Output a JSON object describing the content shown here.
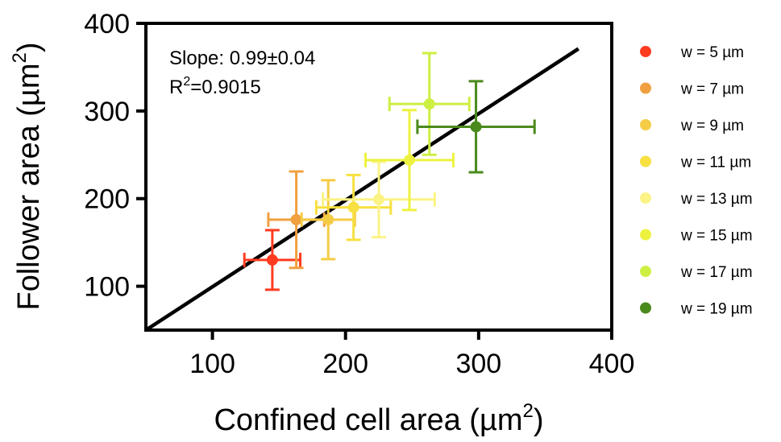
{
  "chart_data": {
    "type": "scatter",
    "xlabel": "Confined cell area (µm",
    "ylabel": "Follower area (µm",
    "label_superscript": "2",
    "label_close": ")",
    "xlim": [
      50,
      400
    ],
    "ylim": [
      50,
      400
    ],
    "x_ticks": [
      "100",
      "200",
      "300",
      "400"
    ],
    "y_ticks": [
      "100",
      "200",
      "300",
      "400"
    ],
    "annotation": {
      "slope": "Slope: 0.99±0.04",
      "r2_prefix": "R",
      "r2_sup": "2",
      "r2_value": "=0.9015"
    },
    "fit_line": {
      "x": [
        50,
        375
      ],
      "y": [
        50,
        371
      ]
    },
    "legend_position": "right",
    "series": [
      {
        "name": "w = 5 µm",
        "color": "#ff3b1f",
        "x": 145,
        "y": 130,
        "xerr": 21,
        "yerr": 34
      },
      {
        "name": "w = 7 µm",
        "color": "#f0a040",
        "x": 163,
        "y": 176,
        "xerr": 21,
        "yerr": 55
      },
      {
        "name": "w = 9 µm",
        "color": "#f5cc45",
        "x": 187,
        "y": 176,
        "xerr": 20,
        "yerr": 45
      },
      {
        "name": "w = 11 µm",
        "color": "#f7e040",
        "x": 206,
        "y": 190,
        "xerr": 28,
        "yerr": 37
      },
      {
        "name": "w = 13 µm",
        "color": "#fbf385",
        "x": 225,
        "y": 199,
        "xerr": 42,
        "yerr": 43
      },
      {
        "name": "w = 15 µm",
        "color": "#edf240",
        "x": 248,
        "y": 244,
        "xerr": 33,
        "yerr": 57
      },
      {
        "name": "w = 17 µm",
        "color": "#cdef42",
        "x": 263,
        "y": 308,
        "xerr": 30,
        "yerr": 58
      },
      {
        "name": "w = 19 µm",
        "color": "#4a8a1c",
        "x": 298,
        "y": 282,
        "xerr": 44,
        "yerr": 52
      }
    ]
  }
}
